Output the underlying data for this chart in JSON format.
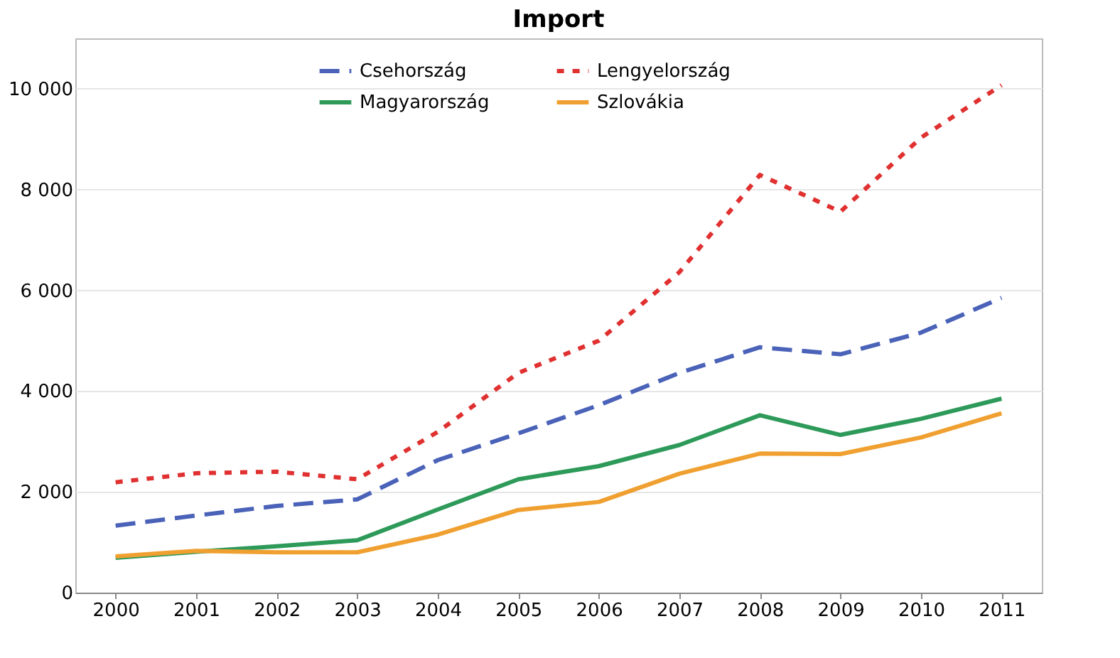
{
  "chart_data": {
    "type": "line",
    "title": "Import",
    "categories": [
      "2000",
      "2001",
      "2002",
      "2003",
      "2004",
      "2005",
      "2006",
      "2007",
      "2008",
      "2009",
      "2010",
      "2011"
    ],
    "series": [
      {
        "name": "Csehország",
        "color": "#4a62b8",
        "line_style": "dashed",
        "values": [
          1330,
          1530,
          1720,
          1850,
          2630,
          3160,
          3720,
          4360,
          4870,
          4730,
          5160,
          5850
        ]
      },
      {
        "name": "Lengyelország",
        "color": "#e03030",
        "line_style": "dotted",
        "values": [
          2190,
          2370,
          2400,
          2250,
          3190,
          4360,
          5000,
          6360,
          8290,
          7560,
          9030,
          10070
        ]
      },
      {
        "name": "Magyarország",
        "color": "#2e9a5a",
        "line_style": "solid",
        "values": [
          690,
          810,
          920,
          1040,
          1650,
          2250,
          2510,
          2930,
          3520,
          3130,
          3450,
          3850
        ]
      },
      {
        "name": "Szlovákia",
        "color": "#f0a030",
        "line_style": "solid",
        "values": [
          720,
          830,
          800,
          800,
          1150,
          1640,
          1800,
          2360,
          2760,
          2750,
          3080,
          3560
        ]
      }
    ],
    "ylim": [
      0,
      11000
    ],
    "yticks": [
      {
        "value": 0,
        "label": "0"
      },
      {
        "value": 2000,
        "label": "2 000"
      },
      {
        "value": 4000,
        "label": "4 000"
      },
      {
        "value": 6000,
        "label": "6 000"
      },
      {
        "value": 8000,
        "label": "8 000"
      },
      {
        "value": 10000,
        "label": "10 000"
      }
    ],
    "grid": "y",
    "legend": "top",
    "marker": "none"
  }
}
